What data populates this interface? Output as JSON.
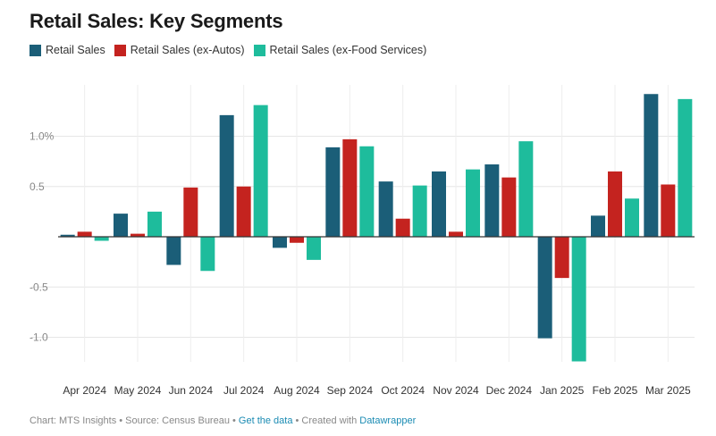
{
  "chart_data": {
    "type": "bar",
    "title": "Retail Sales: Key Segments",
    "categories": [
      "Apr 2024",
      "May 2024",
      "Jun 2024",
      "Jul 2024",
      "Aug 2024",
      "Sep 2024",
      "Oct 2024",
      "Nov 2024",
      "Dec 2024",
      "Jan 2025",
      "Feb 2025",
      "Mar 2025"
    ],
    "series": [
      {
        "name": "Retail Sales",
        "color": "#1b5e78",
        "values": [
          0.02,
          0.23,
          -0.28,
          1.21,
          -0.11,
          0.89,
          0.55,
          0.65,
          0.72,
          -1.01,
          0.21,
          1.42
        ]
      },
      {
        "name": "Retail Sales (ex-Autos)",
        "color": "#c4231f",
        "values": [
          0.05,
          0.03,
          0.49,
          0.5,
          -0.06,
          0.97,
          0.18,
          0.05,
          0.59,
          -0.41,
          0.65,
          0.52
        ]
      },
      {
        "name": "Retail Sales (ex-Food Services)",
        "color": "#1ebc9c",
        "values": [
          -0.04,
          0.25,
          -0.34,
          1.31,
          -0.23,
          0.9,
          0.51,
          0.67,
          0.95,
          -1.24,
          0.38,
          1.37
        ]
      }
    ],
    "y_ticks": [
      {
        "value": 1.0,
        "label": "1.0%"
      },
      {
        "value": 0.5,
        "label": "0.5"
      },
      {
        "value": -0.5,
        "label": "-0.5"
      },
      {
        "value": -1.0,
        "label": "-1.0"
      }
    ],
    "ylim": [
      -1.24,
      1.42
    ],
    "grid": true,
    "legend_position": "top-left",
    "xlabel": "",
    "ylabel": ""
  },
  "footer": {
    "prefix": "Chart: MTS Insights • Source: Census Bureau • ",
    "get_data": "Get the data",
    "middle": " • Created with ",
    "tool": "Datawrapper"
  }
}
